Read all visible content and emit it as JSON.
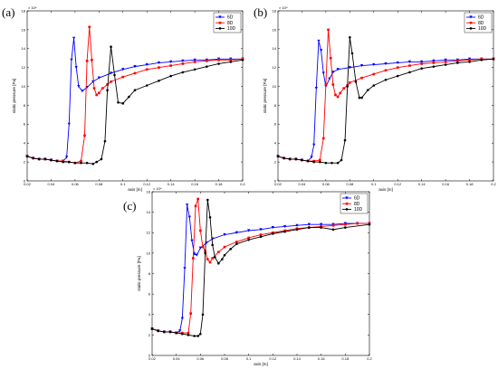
{
  "chart_data": [
    {
      "panel_label": "(a)",
      "type": "line",
      "xlabel": "axis [m]",
      "ylabel": "static pressure [Pa]",
      "y_exponent": "× 10⁴",
      "xlim": [
        0.02,
        0.2
      ],
      "ylim": [
        0,
        18
      ],
      "xticks": [
        "0.02",
        "0.04",
        "0.06",
        "0.08",
        "0.1",
        "0.12",
        "0.14",
        "0.16",
        "0.18",
        "0.2"
      ],
      "yticks": [
        "0",
        "2",
        "4",
        "6",
        "8",
        "10",
        "12",
        "14",
        "16",
        "18"
      ],
      "legend_position": "top-right",
      "series": [
        {
          "name": "6D",
          "color": "#0000ff",
          "marker": "triangle-down",
          "x": [
            0.02,
            0.025,
            0.03,
            0.035,
            0.04,
            0.045,
            0.05,
            0.053,
            0.055,
            0.057,
            0.059,
            0.061,
            0.063,
            0.066,
            0.07,
            0.075,
            0.08,
            0.09,
            0.1,
            0.11,
            0.12,
            0.13,
            0.14,
            0.15,
            0.16,
            0.17,
            0.18,
            0.19,
            0.2
          ],
          "y": [
            2.6,
            2.4,
            2.3,
            2.3,
            2.2,
            2.1,
            2.1,
            2.5,
            6.0,
            12.8,
            15.1,
            12.0,
            10.0,
            9.5,
            9.9,
            10.5,
            10.9,
            11.4,
            11.8,
            12.1,
            12.3,
            12.5,
            12.6,
            12.7,
            12.8,
            12.8,
            12.9,
            12.9,
            12.9
          ]
        },
        {
          "name": "8D",
          "color": "#ff0000",
          "marker": "square",
          "x": [
            0.02,
            0.025,
            0.03,
            0.035,
            0.04,
            0.045,
            0.05,
            0.055,
            0.06,
            0.065,
            0.068,
            0.07,
            0.072,
            0.074,
            0.076,
            0.078,
            0.08,
            0.083,
            0.087,
            0.09,
            0.1,
            0.11,
            0.12,
            0.13,
            0.14,
            0.15,
            0.16,
            0.17,
            0.18,
            0.19,
            0.2
          ],
          "y": [
            2.6,
            2.4,
            2.3,
            2.3,
            2.2,
            2.1,
            2.1,
            2.0,
            1.9,
            2.1,
            4.8,
            12.7,
            16.3,
            12.8,
            9.8,
            9.1,
            9.3,
            9.8,
            10.2,
            10.5,
            11.0,
            11.4,
            11.8,
            12.0,
            12.2,
            12.4,
            12.6,
            12.7,
            12.8,
            12.8,
            12.9
          ]
        },
        {
          "name": "10D",
          "color": "#000000",
          "marker": "circle",
          "x": [
            0.02,
            0.025,
            0.03,
            0.035,
            0.04,
            0.045,
            0.05,
            0.055,
            0.06,
            0.065,
            0.07,
            0.075,
            0.078,
            0.082,
            0.085,
            0.087,
            0.09,
            0.093,
            0.096,
            0.1,
            0.105,
            0.11,
            0.12,
            0.13,
            0.14,
            0.15,
            0.16,
            0.17,
            0.18,
            0.19,
            0.2
          ],
          "y": [
            2.6,
            2.4,
            2.3,
            2.3,
            2.2,
            2.1,
            2.0,
            2.0,
            1.9,
            1.9,
            1.9,
            1.8,
            2.0,
            2.3,
            4.2,
            9.6,
            14.2,
            11.2,
            8.3,
            8.2,
            8.9,
            9.6,
            10.1,
            10.6,
            11.1,
            11.5,
            11.8,
            12.1,
            12.4,
            12.6,
            12.8
          ]
        }
      ]
    },
    {
      "panel_label": "(b)",
      "type": "line",
      "xlabel": "axis [m]",
      "ylabel": "static pressure [Pa]",
      "y_exponent": "× 10⁴",
      "xlim": [
        0.02,
        0.2
      ],
      "ylim": [
        0,
        18
      ],
      "xticks": [
        "0.02",
        "0.04",
        "0.06",
        "0.08",
        "0.1",
        "0.12",
        "0.14",
        "0.16",
        "0.18",
        "0.2"
      ],
      "yticks": [
        "0",
        "2",
        "4",
        "6",
        "8",
        "10",
        "12",
        "14",
        "16",
        "18"
      ],
      "legend_position": "top-right",
      "series": [
        {
          "name": "6D",
          "color": "#0000ff",
          "marker": "triangle-down",
          "x": [
            0.02,
            0.025,
            0.03,
            0.035,
            0.04,
            0.045,
            0.048,
            0.05,
            0.052,
            0.054,
            0.056,
            0.058,
            0.06,
            0.063,
            0.066,
            0.07,
            0.08,
            0.09,
            0.1,
            0.11,
            0.12,
            0.13,
            0.14,
            0.15,
            0.16,
            0.17,
            0.18,
            0.19,
            0.2
          ],
          "y": [
            2.6,
            2.4,
            2.3,
            2.3,
            2.2,
            2.1,
            2.5,
            3.8,
            9.8,
            14.8,
            13.8,
            11.4,
            10.0,
            10.8,
            11.5,
            11.8,
            12.0,
            12.2,
            12.3,
            12.4,
            12.5,
            12.6,
            12.6,
            12.7,
            12.8,
            12.8,
            12.9,
            12.9,
            12.9
          ]
        },
        {
          "name": "8D",
          "color": "#ff0000",
          "marker": "square",
          "x": [
            0.02,
            0.025,
            0.03,
            0.035,
            0.04,
            0.045,
            0.05,
            0.055,
            0.058,
            0.06,
            0.062,
            0.064,
            0.066,
            0.068,
            0.07,
            0.072,
            0.075,
            0.078,
            0.08,
            0.09,
            0.1,
            0.11,
            0.12,
            0.13,
            0.14,
            0.15,
            0.16,
            0.17,
            0.18,
            0.19,
            0.2
          ],
          "y": [
            2.6,
            2.4,
            2.3,
            2.3,
            2.2,
            2.1,
            2.1,
            2.2,
            4.5,
            10.2,
            16.0,
            13.0,
            10.2,
            9.1,
            8.9,
            9.3,
            9.8,
            10.1,
            10.4,
            10.9,
            11.3,
            11.7,
            12.0,
            12.2,
            12.4,
            12.5,
            12.6,
            12.7,
            12.8,
            12.9,
            12.9
          ]
        },
        {
          "name": "10D",
          "color": "#000000",
          "marker": "circle",
          "x": [
            0.02,
            0.025,
            0.03,
            0.035,
            0.04,
            0.045,
            0.05,
            0.055,
            0.06,
            0.065,
            0.07,
            0.073,
            0.076,
            0.078,
            0.08,
            0.082,
            0.085,
            0.088,
            0.09,
            0.095,
            0.1,
            0.11,
            0.12,
            0.13,
            0.14,
            0.15,
            0.16,
            0.17,
            0.18,
            0.19,
            0.2
          ],
          "y": [
            2.6,
            2.4,
            2.3,
            2.3,
            2.2,
            2.1,
            2.0,
            2.0,
            1.9,
            1.9,
            1.9,
            2.2,
            4.3,
            10.0,
            15.2,
            13.5,
            10.5,
            8.8,
            8.8,
            9.6,
            10.1,
            10.7,
            11.1,
            11.5,
            11.9,
            12.1,
            12.3,
            12.5,
            12.6,
            12.8,
            12.9
          ]
        }
      ]
    },
    {
      "panel_label": "(c)",
      "type": "line",
      "xlabel": "axis [m]",
      "ylabel": "static pressure [Pa]",
      "y_exponent": "× 10⁴",
      "xlim": [
        0.02,
        0.2
      ],
      "ylim": [
        0,
        16
      ],
      "xticks": [
        "0.02",
        "0.04",
        "0.06",
        "0.08",
        "0.1",
        "0.12",
        "0.14",
        "0.16",
        "0.18",
        "0.2"
      ],
      "yticks": [
        "0",
        "2",
        "4",
        "6",
        "8",
        "10",
        "12",
        "14",
        "16"
      ],
      "legend_position": "top-right",
      "series": [
        {
          "name": "6D",
          "color": "#0000ff",
          "marker": "triangle-down",
          "x": [
            0.02,
            0.025,
            0.03,
            0.035,
            0.04,
            0.043,
            0.045,
            0.047,
            0.049,
            0.051,
            0.053,
            0.055,
            0.057,
            0.06,
            0.065,
            0.07,
            0.08,
            0.09,
            0.1,
            0.11,
            0.12,
            0.13,
            0.14,
            0.15,
            0.16,
            0.17,
            0.18,
            0.19,
            0.2
          ],
          "y": [
            2.6,
            2.4,
            2.3,
            2.3,
            2.2,
            2.4,
            3.6,
            8.5,
            14.7,
            13.5,
            11.2,
            9.9,
            9.8,
            10.5,
            11.0,
            11.4,
            11.8,
            12.0,
            12.2,
            12.3,
            12.5,
            12.6,
            12.7,
            12.8,
            12.8,
            12.8,
            12.9,
            12.9,
            12.9
          ]
        },
        {
          "name": "8D",
          "color": "#ff0000",
          "marker": "square",
          "x": [
            0.02,
            0.025,
            0.03,
            0.035,
            0.04,
            0.045,
            0.05,
            0.052,
            0.054,
            0.056,
            0.058,
            0.06,
            0.062,
            0.064,
            0.066,
            0.068,
            0.07,
            0.075,
            0.08,
            0.09,
            0.1,
            0.11,
            0.12,
            0.13,
            0.14,
            0.15,
            0.16,
            0.17,
            0.18,
            0.19,
            0.2
          ],
          "y": [
            2.6,
            2.4,
            2.3,
            2.3,
            2.2,
            2.2,
            2.2,
            4.1,
            9.5,
            14.6,
            15.3,
            12.2,
            10.6,
            10.2,
            9.4,
            9.1,
            9.5,
            10.1,
            10.6,
            11.1,
            11.5,
            11.8,
            12.0,
            12.2,
            12.4,
            12.5,
            12.6,
            12.7,
            12.8,
            12.9,
            12.9
          ]
        },
        {
          "name": "10D",
          "color": "#000000",
          "marker": "circle",
          "x": [
            0.02,
            0.025,
            0.03,
            0.035,
            0.04,
            0.045,
            0.05,
            0.055,
            0.058,
            0.06,
            0.062,
            0.064,
            0.066,
            0.068,
            0.07,
            0.072,
            0.075,
            0.078,
            0.08,
            0.085,
            0.09,
            0.1,
            0.11,
            0.12,
            0.13,
            0.14,
            0.15,
            0.16,
            0.17,
            0.18,
            0.2
          ],
          "y": [
            2.6,
            2.4,
            2.3,
            2.3,
            2.2,
            2.1,
            2.0,
            1.9,
            1.9,
            2.1,
            4.0,
            10.0,
            15.2,
            13.5,
            10.8,
            9.6,
            9.0,
            9.4,
            9.8,
            10.4,
            10.9,
            11.3,
            11.6,
            11.9,
            12.1,
            12.3,
            12.5,
            12.5,
            12.3,
            12.5,
            12.8
          ]
        }
      ]
    }
  ]
}
